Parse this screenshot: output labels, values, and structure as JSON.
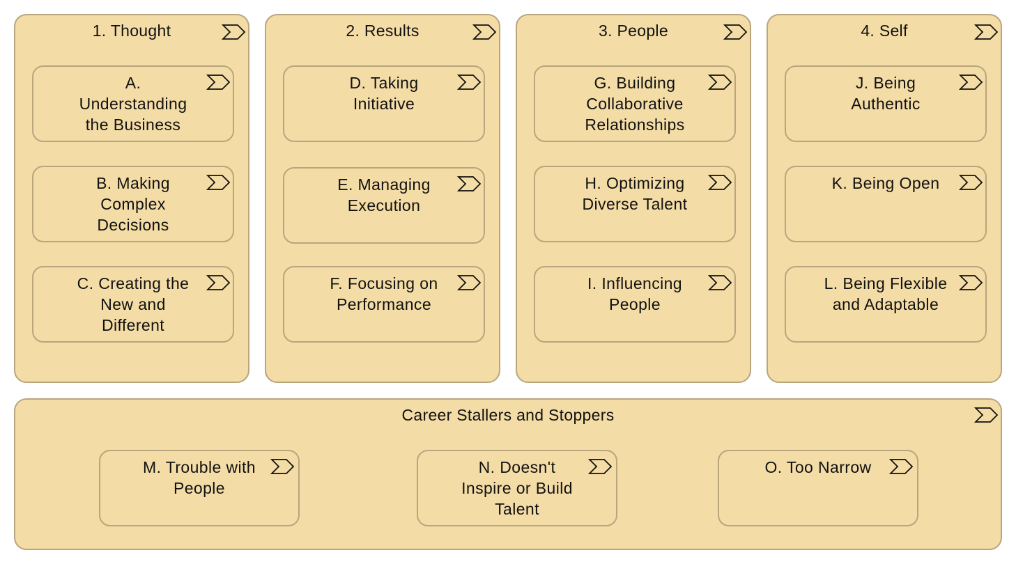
{
  "icon": "value-stream-chevron-icon",
  "colors": {
    "fill": "#f4dca6",
    "border": "#b9a57e",
    "text": "#111111"
  },
  "columns": [
    {
      "title": "1. Thought",
      "items": [
        {
          "label": "A.\nUnderstanding\nthe Business"
        },
        {
          "label": "B. Making\nComplex\nDecisions"
        },
        {
          "label": "C. Creating the\nNew and\nDifferent"
        }
      ]
    },
    {
      "title": "2. Results",
      "items": [
        {
          "label": "D. Taking\nInitiative"
        },
        {
          "label": "E. Managing\nExecution"
        },
        {
          "label": "F. Focusing on\nPerformance"
        }
      ]
    },
    {
      "title": "3. People",
      "items": [
        {
          "label": "G. Building\nCollaborative\nRelationships"
        },
        {
          "label": "H. Optimizing\nDiverse Talent"
        },
        {
          "label": "I. Influencing\nPeople"
        }
      ]
    },
    {
      "title": "4. Self",
      "items": [
        {
          "label": "J. Being\nAuthentic"
        },
        {
          "label": "K. Being Open"
        },
        {
          "label": "L. Being Flexible\nand Adaptable"
        }
      ]
    }
  ],
  "stallers": {
    "title": "Career Stallers and Stoppers",
    "items": [
      {
        "label": "M. Trouble with\nPeople"
      },
      {
        "label": "N. Doesn't\nInspire or Build\nTalent"
      },
      {
        "label": "O. Too Narrow"
      }
    ]
  }
}
